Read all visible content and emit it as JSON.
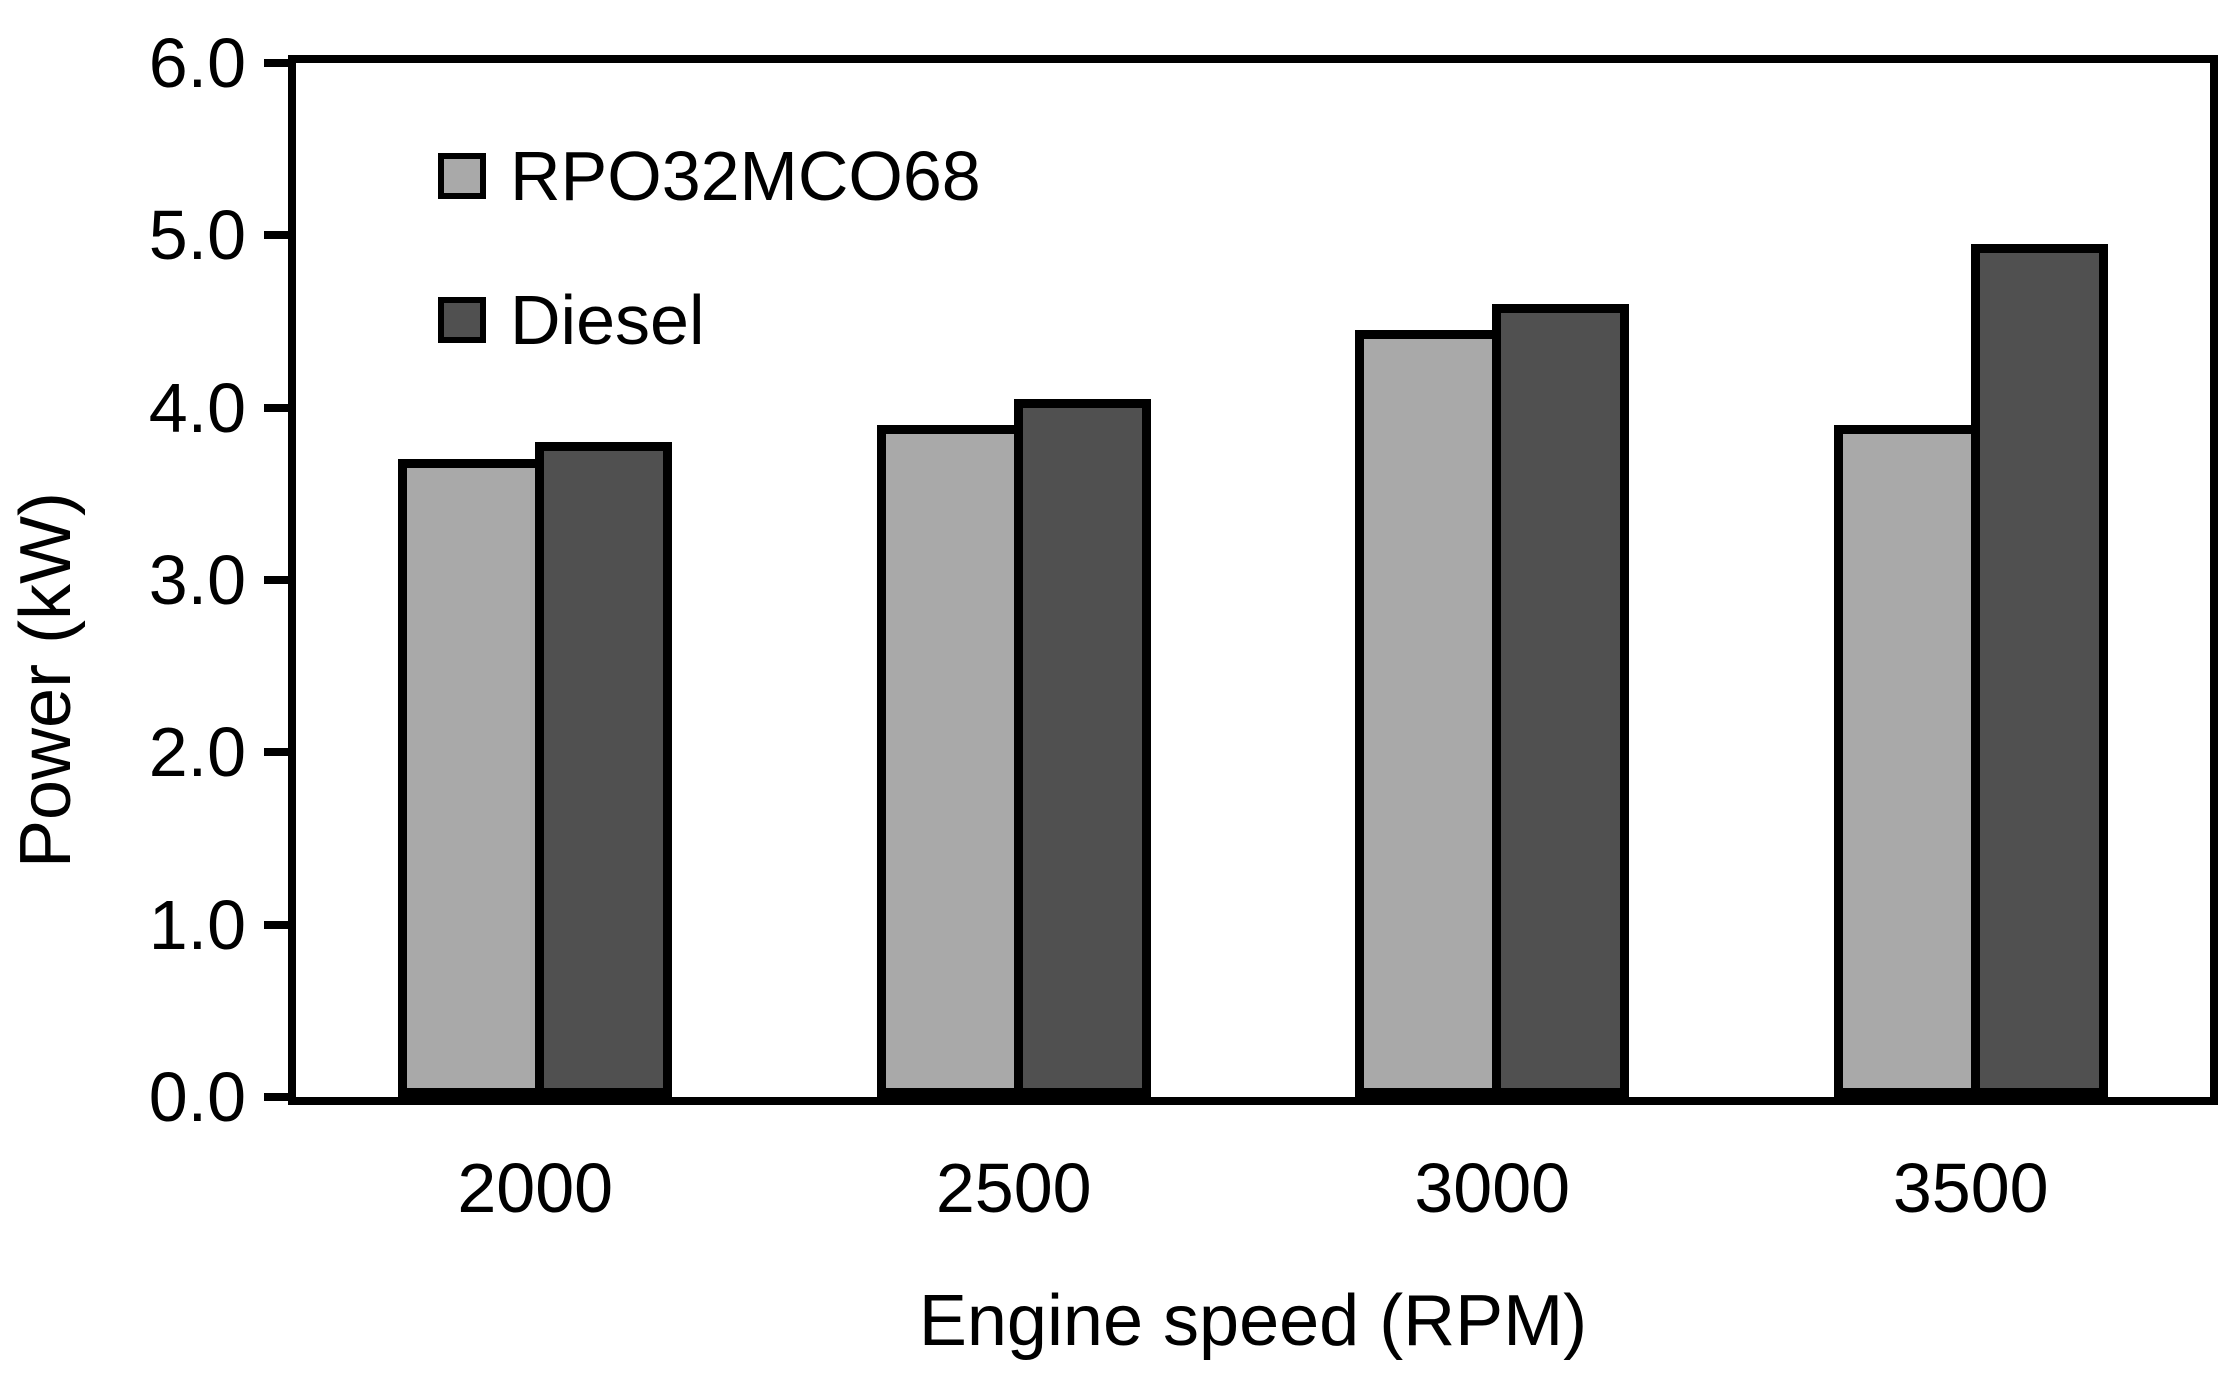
{
  "chart_data": {
    "type": "bar",
    "title": "",
    "xlabel": "Engine speed (RPM)",
    "ylabel": "Power (kW)",
    "categories": [
      "2000",
      "2500",
      "3000",
      "3500"
    ],
    "series": [
      {
        "name": "RPO32MCO68",
        "color": "#a9a9a9",
        "values": [
          3.7,
          3.9,
          4.45,
          3.9
        ]
      },
      {
        "name": "Diesel",
        "color": "#505050",
        "values": [
          3.8,
          4.05,
          4.6,
          4.95
        ]
      }
    ],
    "ylim": [
      0,
      6
    ],
    "ytick_step": 1.0,
    "ytick_labels": [
      "6.0",
      "5.0",
      "4.0",
      "3.0",
      "2.0",
      "1.0",
      "0.0"
    ],
    "grid": false,
    "legend_position": "inside-top-left",
    "axis_color": "#000000",
    "bar_border_color": "#000000",
    "background_color": "#ffffff"
  }
}
